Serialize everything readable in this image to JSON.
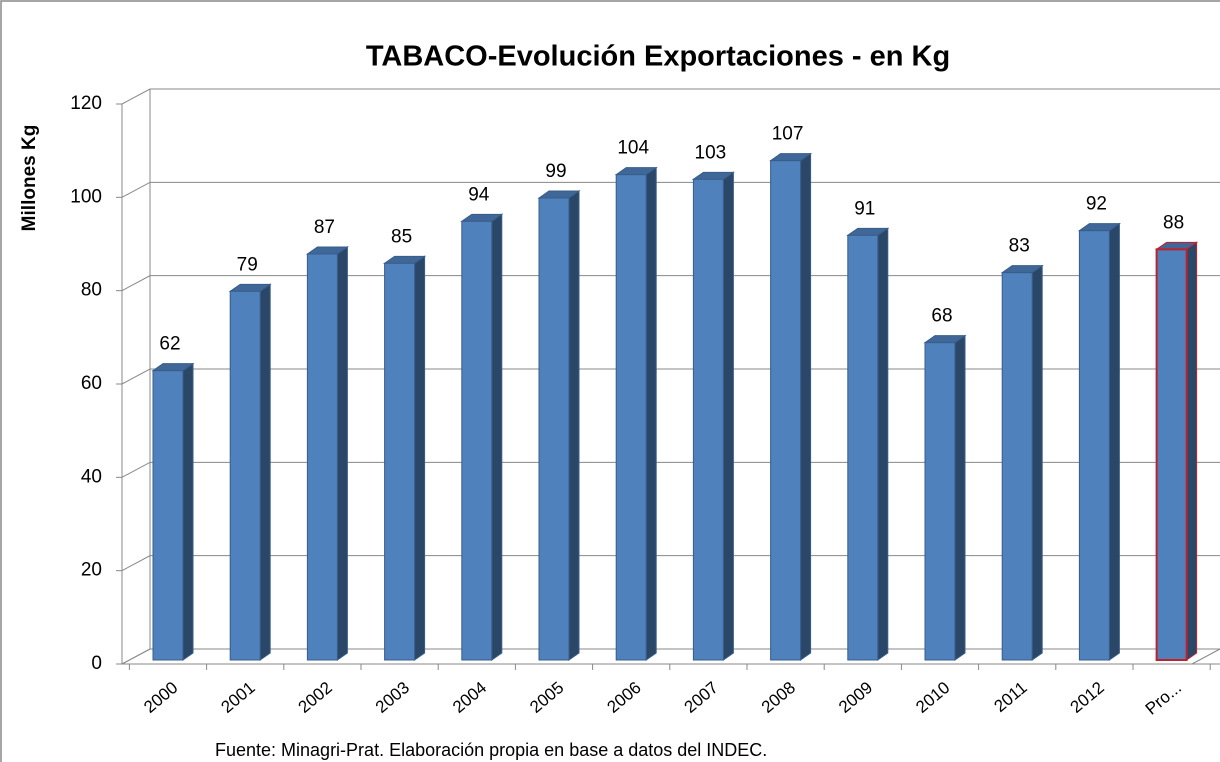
{
  "chart_data": {
    "type": "bar3d",
    "title": "TABACO-Evolución Exportaciones - en Kg",
    "y_label": "Millones Kg",
    "source": "Fuente: Minagri-Prat. Elaboración propia en base a datos del INDEC.",
    "categories": [
      "2000",
      "2001",
      "2002",
      "2003",
      "2004",
      "2005",
      "2006",
      "2007",
      "2008",
      "2009",
      "2010",
      "2011",
      "2012",
      "Pro..."
    ],
    "values": [
      62,
      79,
      87,
      85,
      94,
      99,
      104,
      103,
      107,
      91,
      68,
      83,
      92,
      88
    ],
    "color": "#4f81bd",
    "edge_colors": [
      "#385d8a",
      "#385d8a",
      "#385d8a",
      "#385d8a",
      "#385d8a",
      "#385d8a",
      "#385d8a",
      "#385d8a",
      "#385d8a",
      "#385d8a",
      "#385d8a",
      "#385d8a",
      "#385d8a",
      "#c0202a"
    ],
    "ylim": [
      0,
      120
    ],
    "yticks": [
      0,
      20,
      40,
      60,
      80,
      100,
      120
    ],
    "grid": true
  }
}
